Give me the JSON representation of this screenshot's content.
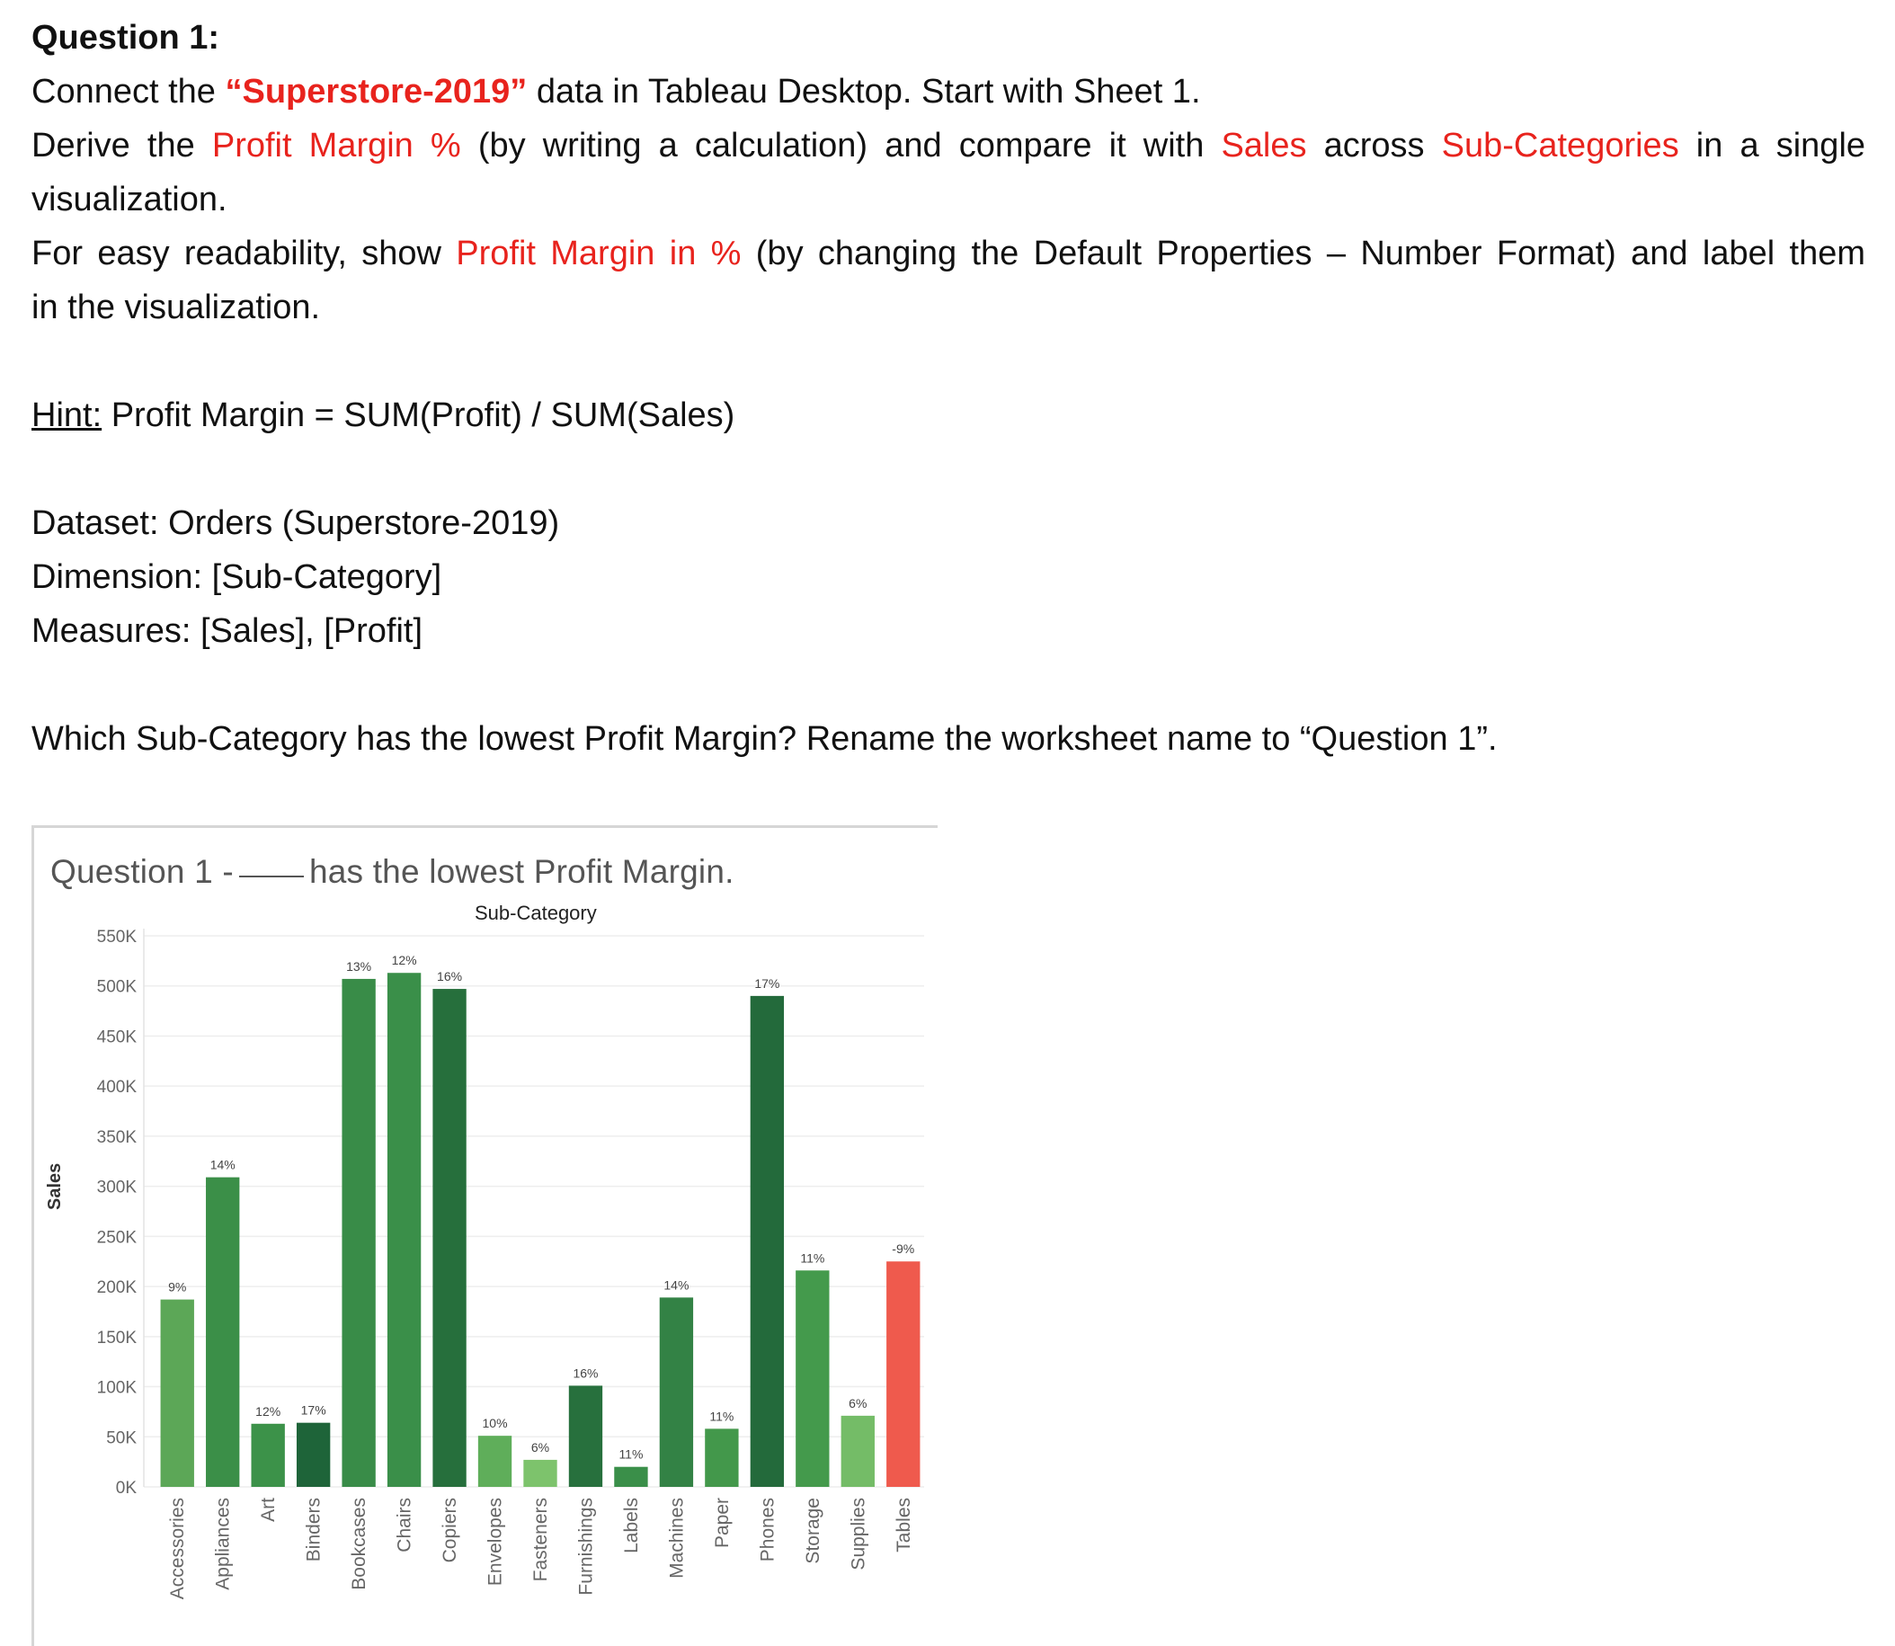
{
  "question": {
    "heading": "Question 1:",
    "line1": {
      "a": "Connect the ",
      "b": "“Superstore-2019”",
      "c": " data in Tableau Desktop. Start with Sheet 1."
    },
    "line2": {
      "a": "Derive the ",
      "b": "Profit Margin %",
      "c": " (by writing a calculation) and compare it with ",
      "d": "Sales",
      "e": " across ",
      "f": "Sub-Categories",
      "g": " in a single"
    },
    "line3": "visualization.",
    "line4": {
      "a": "For easy readability, show ",
      "b": "Profit Margin in %",
      "c": " (by changing the Default Properties – Number Format) and label them"
    },
    "line5": "in the visualization.",
    "hint_label": "Hint:",
    "hint_text": " Profit Margin = SUM(Profit) / SUM(Sales)",
    "dataset": "Dataset: Orders (Superstore-2019)",
    "dimension": "Dimension: [Sub-Category]",
    "measures": "Measures: [Sales], [Profit]",
    "ask": "Which Sub-Category has the lowest Profit Margin? Rename the worksheet name to “Question 1”."
  },
  "viz": {
    "title_pre": "Question 1 -",
    "title_post": "has the lowest Profit Margin.",
    "header": "Sub-Category"
  },
  "chart_data": {
    "type": "bar",
    "xlabel": "Sub-Category",
    "ylabel": "Sales",
    "ylim": [
      0,
      550000
    ],
    "yticks": [
      {
        "value": 0,
        "label": "0K"
      },
      {
        "value": 50000,
        "label": "50K"
      },
      {
        "value": 100000,
        "label": "100K"
      },
      {
        "value": 150000,
        "label": "150K"
      },
      {
        "value": 200000,
        "label": "200K"
      },
      {
        "value": 250000,
        "label": "250K"
      },
      {
        "value": 300000,
        "label": "300K"
      },
      {
        "value": 350000,
        "label": "350K"
      },
      {
        "value": 400000,
        "label": "400K"
      },
      {
        "value": 450000,
        "label": "450K"
      },
      {
        "value": 500000,
        "label": "500K"
      },
      {
        "value": 550000,
        "label": "550K"
      }
    ],
    "categories": [
      "Accessories",
      "Appliances",
      "Art",
      "Binders",
      "Bookcases",
      "Chairs",
      "Copiers",
      "Envelopes",
      "Fasteners",
      "Furnishings",
      "Labels",
      "Machines",
      "Paper",
      "Phones",
      "Storage",
      "Supplies",
      "Tables"
    ],
    "values": [
      187000,
      309000,
      63000,
      64000,
      507000,
      513000,
      497000,
      51000,
      27000,
      101000,
      20000,
      189000,
      58000,
      490000,
      216000,
      71000,
      225000
    ],
    "data_labels": [
      "9%",
      "14%",
      "12%",
      "17%",
      "13%",
      "12%",
      "16%",
      "10%",
      "6%",
      "16%",
      "11%",
      "14%",
      "11%",
      "17%",
      "11%",
      "6%",
      "-9%"
    ],
    "colors": [
      "#5ca757",
      "#3b8f48",
      "#3c9249",
      "#1e6439",
      "#398c48",
      "#3a8f49",
      "#266f3c",
      "#5fae5a",
      "#7dc36c",
      "#27703d",
      "#3a8f49",
      "#338245",
      "#43984b",
      "#236a3b",
      "#449a4c",
      "#74bc67",
      "#ef5a4d"
    ]
  }
}
